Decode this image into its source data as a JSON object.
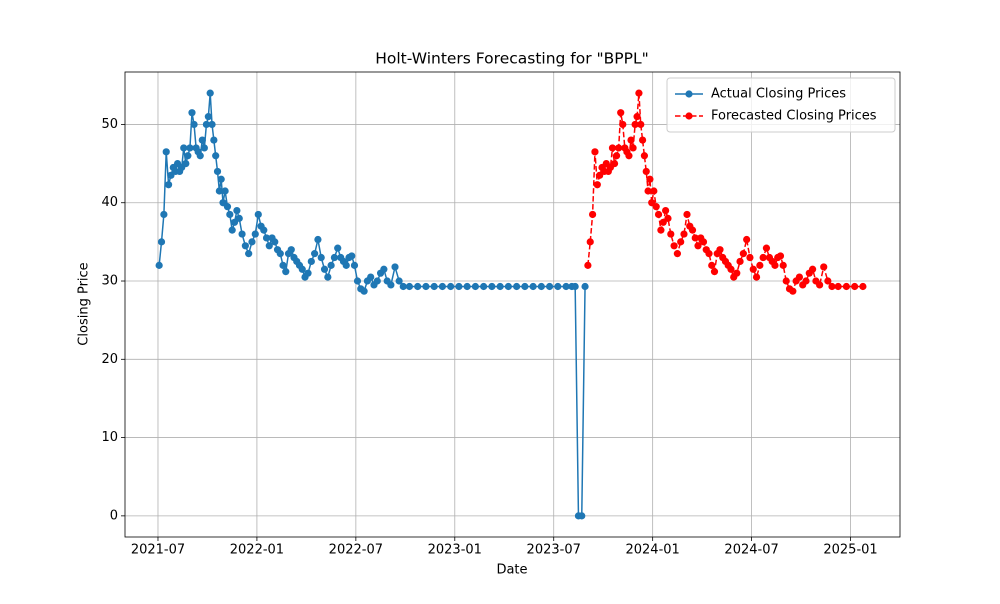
{
  "chart_data": {
    "type": "line",
    "title": "Holt-Winters Forecasting for \"BPPL\"",
    "xlabel": "Date",
    "ylabel": "Closing Price",
    "xlim": [
      "2021-05",
      "2025-04"
    ],
    "xticks": [
      "2021-07",
      "2022-01",
      "2022-07",
      "2023-01",
      "2023-07",
      "2024-01",
      "2024-07",
      "2025-01"
    ],
    "ylim": [
      -2.7,
      56.7
    ],
    "yticks": [
      0,
      10,
      20,
      30,
      40,
      50
    ],
    "grid": true,
    "legend": "upper right",
    "series": [
      {
        "name": "Actual Closing Prices",
        "color": "#1f77b4",
        "linestyle": "solid",
        "x": [
          "2021-07",
          "2021-07",
          "2021-07",
          "2021-07",
          "2021-07",
          "2021-07",
          "2021-07",
          "2021-08",
          "2021-08",
          "2021-08",
          "2021-08",
          "2021-08",
          "2021-08",
          "2021-08",
          "2021-08",
          "2021-09",
          "2021-09",
          "2021-09",
          "2021-09",
          "2021-09",
          "2021-09",
          "2021-09",
          "2021-09",
          "2021-10",
          "2021-10",
          "2021-10",
          "2021-10",
          "2021-10",
          "2021-10",
          "2021-10",
          "2021-10",
          "2021-10",
          "2021-11",
          "2021-11",
          "2021-11",
          "2021-11",
          "2021-11",
          "2021-11",
          "2021-11",
          "2021-12",
          "2021-12",
          "2021-12",
          "2021-12",
          "2021-12",
          "2022-01",
          "2022-01",
          "2022-01",
          "2022-01",
          "2022-01",
          "2022-01",
          "2022-02",
          "2022-02",
          "2022-02",
          "2022-02",
          "2022-02",
          "2022-02",
          "2022-03",
          "2022-03",
          "2022-03",
          "2022-03",
          "2022-03",
          "2022-03",
          "2022-04",
          "2022-04",
          "2022-04",
          "2022-04",
          "2022-04",
          "2022-05",
          "2022-05",
          "2022-05",
          "2022-05",
          "2022-05",
          "2022-06",
          "2022-06",
          "2022-06",
          "2022-06",
          "2022-06",
          "2022-06",
          "2022-07",
          "2022-07",
          "2022-07",
          "2022-07",
          "2022-07",
          "2022-08",
          "2022-08",
          "2022-08",
          "2022-08",
          "2022-08",
          "2022-09",
          "2022-09",
          "2022-09",
          "2022-09",
          "2022-10",
          "2022-10",
          "2022-11",
          "2022-11",
          "2022-12",
          "2022-12",
          "2023-01",
          "2023-01",
          "2023-02",
          "2023-02",
          "2023-03",
          "2023-03",
          "2023-04",
          "2023-04",
          "2023-05",
          "2023-05",
          "2023-06",
          "2023-06",
          "2023-07",
          "2023-07",
          "2023-08",
          "2023-08",
          "2023-08",
          "2023-08",
          "2023-08"
        ],
        "values": [
          32,
          35,
          38.5,
          46.5,
          42.3,
          43.5,
          44.5,
          44,
          45,
          44,
          44.5,
          47,
          45,
          46,
          47,
          51.5,
          50,
          47,
          46.5,
          46,
          48,
          47,
          50,
          51,
          54,
          50,
          48,
          46,
          44,
          41.5,
          43,
          40,
          41.5,
          39.5,
          38.5,
          36.5,
          37.5,
          39,
          38,
          36,
          34.5,
          33.5,
          35,
          36,
          38.5,
          37,
          36.5,
          35.5,
          34.5,
          35.5,
          35,
          34,
          33.5,
          32,
          31.2,
          33.5,
          34,
          33,
          32.5,
          32,
          31.5,
          30.5,
          31,
          32.5,
          33.5,
          35.3,
          33,
          31.5,
          30.5,
          32,
          33,
          34.2,
          33,
          32.5,
          32,
          33,
          33.2,
          32,
          30,
          29,
          28.7,
          30,
          30.5,
          29.5,
          30,
          31,
          31.5,
          30,
          29.5,
          31.8,
          30,
          29.3,
          29.3,
          29.3,
          29.3,
          29.3,
          29.3,
          29.3,
          29.3,
          29.3,
          29.3,
          29.3,
          29.3,
          29.3,
          29.3,
          29.3,
          29.3,
          29.3,
          29.3,
          29.3,
          29.3,
          29.3,
          29.3,
          29.3,
          0,
          0,
          29.3
        ]
      },
      {
        "name": "Forecasted Closing Prices",
        "color": "#ff0000",
        "linestyle": "dashed",
        "x": [
          "2023-09",
          "2023-09",
          "2023-09",
          "2023-09",
          "2023-09",
          "2023-09",
          "2023-09",
          "2023-10",
          "2023-10",
          "2023-10",
          "2023-10",
          "2023-10",
          "2023-10",
          "2023-10",
          "2023-10",
          "2023-11",
          "2023-11",
          "2023-11",
          "2023-11",
          "2023-11",
          "2023-11",
          "2023-11",
          "2023-11",
          "2023-12",
          "2023-12",
          "2023-12",
          "2023-12",
          "2023-12",
          "2023-12",
          "2023-12",
          "2023-12",
          "2023-12",
          "2024-01",
          "2024-01",
          "2024-01",
          "2024-01",
          "2024-01",
          "2024-01",
          "2024-01",
          "2024-02",
          "2024-02",
          "2024-02",
          "2024-02",
          "2024-02",
          "2024-03",
          "2024-03",
          "2024-03",
          "2024-03",
          "2024-03",
          "2024-03",
          "2024-04",
          "2024-04",
          "2024-04",
          "2024-04",
          "2024-04",
          "2024-04",
          "2024-05",
          "2024-05",
          "2024-05",
          "2024-05",
          "2024-05",
          "2024-05",
          "2024-06",
          "2024-06",
          "2024-06",
          "2024-06",
          "2024-06",
          "2024-07",
          "2024-07",
          "2024-07",
          "2024-07",
          "2024-07",
          "2024-08",
          "2024-08",
          "2024-08",
          "2024-08",
          "2024-08",
          "2024-08",
          "2024-09",
          "2024-09",
          "2024-09",
          "2024-09",
          "2024-09",
          "2024-10",
          "2024-10",
          "2024-10",
          "2024-10",
          "2024-10",
          "2024-11",
          "2024-11",
          "2024-11",
          "2024-11",
          "2024-12",
          "2024-12",
          "2025-01",
          "2025-01"
        ],
        "values": [
          32,
          35,
          38.5,
          46.5,
          42.3,
          43.5,
          44.5,
          44,
          45,
          44,
          44.5,
          47,
          45,
          46,
          47,
          51.5,
          50,
          47,
          46.5,
          46,
          48,
          47,
          50,
          51,
          54,
          50,
          48,
          46,
          44,
          41.5,
          43,
          40,
          41.5,
          39.5,
          38.5,
          36.5,
          37.5,
          39,
          38,
          36,
          34.5,
          33.5,
          35,
          36,
          38.5,
          37,
          36.5,
          35.5,
          34.5,
          35.5,
          35,
          34,
          33.5,
          32,
          31.2,
          33.5,
          34,
          33,
          32.5,
          32,
          31.5,
          30.5,
          31,
          32.5,
          33.5,
          35.3,
          33,
          31.5,
          30.5,
          32,
          33,
          34.2,
          33,
          32.5,
          32,
          33,
          33.2,
          32,
          30,
          29,
          28.7,
          30,
          30.5,
          29.5,
          30,
          31,
          31.5,
          30,
          29.5,
          31.8,
          30,
          29.3,
          29.3,
          29.3,
          29.3,
          29.3
        ]
      }
    ]
  }
}
